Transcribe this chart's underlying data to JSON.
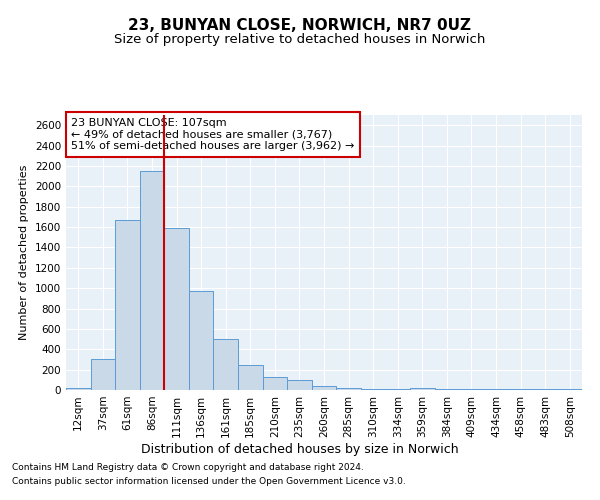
{
  "title_line1": "23, BUNYAN CLOSE, NORWICH, NR7 0UZ",
  "title_line2": "Size of property relative to detached houses in Norwich",
  "xlabel": "Distribution of detached houses by size in Norwich",
  "ylabel": "Number of detached properties",
  "categories": [
    "12sqm",
    "37sqm",
    "61sqm",
    "86sqm",
    "111sqm",
    "136sqm",
    "161sqm",
    "185sqm",
    "210sqm",
    "235sqm",
    "260sqm",
    "285sqm",
    "310sqm",
    "334sqm",
    "359sqm",
    "384sqm",
    "409sqm",
    "434sqm",
    "458sqm",
    "483sqm",
    "508sqm"
  ],
  "values": [
    20,
    300,
    1670,
    2150,
    1590,
    970,
    500,
    245,
    125,
    100,
    40,
    20,
    10,
    5,
    20,
    5,
    10,
    5,
    5,
    5,
    5
  ],
  "bar_color": "#c9d9e8",
  "bar_edge_color": "#5b9bd5",
  "vline_color": "#cc0000",
  "annotation_text": "23 BUNYAN CLOSE: 107sqm\n← 49% of detached houses are smaller (3,767)\n51% of semi-detached houses are larger (3,962) →",
  "annotation_box_color": "#ffffff",
  "annotation_box_edge_color": "#cc0000",
  "ylim": [
    0,
    2700
  ],
  "yticks": [
    0,
    200,
    400,
    600,
    800,
    1000,
    1200,
    1400,
    1600,
    1800,
    2000,
    2200,
    2400,
    2600
  ],
  "footer_line1": "Contains HM Land Registry data © Crown copyright and database right 2024.",
  "footer_line2": "Contains public sector information licensed under the Open Government Licence v3.0.",
  "plot_bg_color": "#e8f0f8",
  "title1_fontsize": 11,
  "title2_fontsize": 9.5,
  "xlabel_fontsize": 9,
  "ylabel_fontsize": 8,
  "tick_fontsize": 7.5,
  "footer_fontsize": 6.5,
  "ann_fontsize": 8
}
